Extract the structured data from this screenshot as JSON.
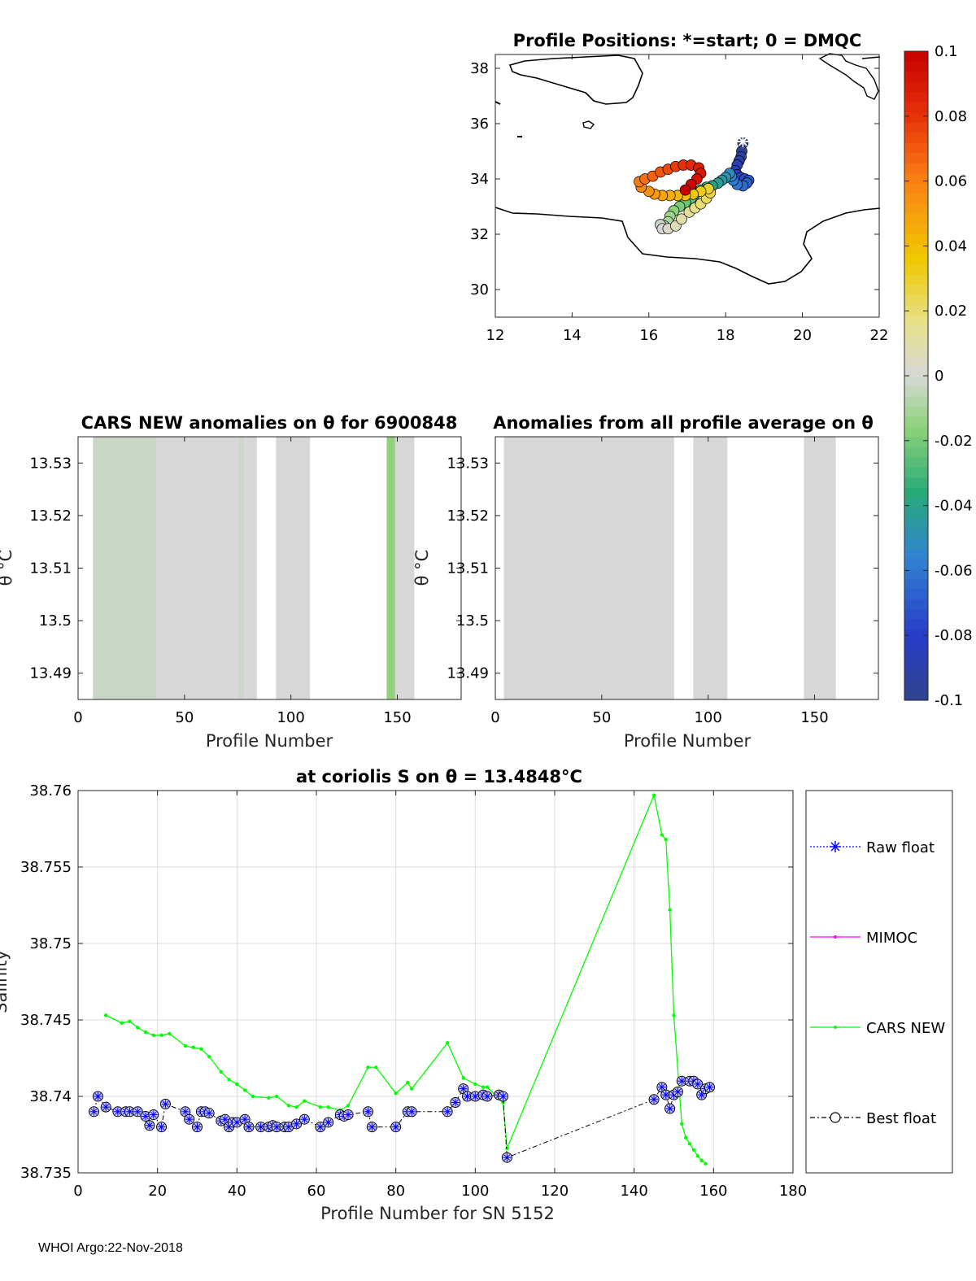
{
  "footer": "WHOI Argo:22-Nov-2018",
  "chart_data": [
    {
      "type": "scatter",
      "title": "Profile Positions: *=start; 0 = DMQC",
      "xlim": [
        12,
        22
      ],
      "ylim": [
        29,
        38.5
      ],
      "x_ticks": [
        "12",
        "14",
        "16",
        "18",
        "20",
        "22"
      ],
      "y_ticks": [
        "30",
        "32",
        "34",
        "36",
        "38"
      ],
      "start_marker": [
        18.45,
        35.35
      ],
      "track": [
        [
          18.45,
          35.3
        ],
        [
          18.42,
          35.0
        ],
        [
          18.4,
          34.8
        ],
        [
          18.35,
          34.65
        ],
        [
          18.3,
          34.5
        ],
        [
          18.25,
          34.3
        ],
        [
          18.3,
          34.15
        ],
        [
          18.4,
          34.05
        ],
        [
          18.5,
          34.0
        ],
        [
          18.6,
          33.95
        ],
        [
          18.55,
          33.85
        ],
        [
          18.45,
          33.75
        ],
        [
          18.3,
          33.8
        ],
        [
          18.2,
          33.95
        ],
        [
          18.15,
          34.1
        ],
        [
          18.1,
          34.2
        ],
        [
          18.0,
          34.05
        ],
        [
          17.9,
          33.95
        ],
        [
          17.8,
          33.85
        ],
        [
          17.65,
          33.75
        ],
        [
          17.5,
          33.7
        ],
        [
          17.35,
          33.6
        ],
        [
          17.2,
          33.45
        ],
        [
          17.1,
          33.3
        ],
        [
          16.95,
          33.15
        ],
        [
          16.8,
          33.0
        ],
        [
          16.65,
          32.85
        ],
        [
          16.55,
          32.65
        ],
        [
          16.5,
          32.45
        ],
        [
          16.4,
          32.3
        ],
        [
          16.3,
          32.35
        ],
        [
          16.35,
          32.2
        ],
        [
          16.5,
          32.2
        ],
        [
          16.7,
          32.3
        ],
        [
          16.85,
          32.55
        ],
        [
          17.05,
          32.8
        ],
        [
          17.2,
          32.95
        ],
        [
          17.35,
          33.1
        ],
        [
          17.5,
          33.3
        ],
        [
          17.6,
          33.5
        ],
        [
          17.55,
          33.65
        ],
        [
          17.35,
          33.55
        ],
        [
          17.15,
          33.45
        ],
        [
          16.95,
          33.4
        ],
        [
          16.75,
          33.4
        ],
        [
          16.55,
          33.4
        ],
        [
          16.35,
          33.4
        ],
        [
          16.15,
          33.45
        ],
        [
          16.0,
          33.55
        ],
        [
          15.8,
          33.7
        ],
        [
          15.75,
          33.9
        ],
        [
          15.9,
          34.0
        ],
        [
          16.1,
          34.1
        ],
        [
          16.3,
          34.25
        ],
        [
          16.5,
          34.35
        ],
        [
          16.7,
          34.45
        ],
        [
          16.9,
          34.5
        ],
        [
          17.1,
          34.5
        ],
        [
          17.3,
          34.4
        ],
        [
          17.35,
          34.2
        ],
        [
          17.25,
          34.0
        ],
        [
          17.1,
          33.8
        ],
        [
          16.95,
          33.6
        ]
      ],
      "colorbar": {
        "min": -0.1,
        "max": 0.1,
        "tick_labels": [
          "0.1",
          "0.08",
          "0.06",
          "0.04",
          "0.02",
          "0",
          "-0.02",
          "-0.04",
          "-0.06",
          "-0.08",
          "-0.1"
        ]
      }
    },
    {
      "type": "heatmap",
      "title": "CARS NEW anomalies on θ for 6900848",
      "xlabel": "Profile Number",
      "ylabel": "θ °C",
      "xlim": [
        0,
        180
      ],
      "ylim": [
        13.485,
        13.535
      ],
      "x_ticks": [
        "0",
        "50",
        "100",
        "150"
      ],
      "y_ticks": [
        "13.53",
        "13.52",
        "13.51",
        "13.5",
        "13.49"
      ],
      "columns": [
        {
          "from": 7,
          "to": 37,
          "value": -0.003
        },
        {
          "from": 37,
          "to": 75,
          "value": 0
        },
        {
          "from": 75,
          "to": 78,
          "value": -0.002
        },
        {
          "from": 78,
          "to": 84,
          "value": 0
        },
        {
          "from": 93,
          "to": 109,
          "value": 0
        },
        {
          "from": 145,
          "to": 149,
          "value": -0.015
        },
        {
          "from": 149,
          "to": 158,
          "value": 0
        }
      ]
    },
    {
      "type": "heatmap",
      "title": "Anomalies from all profile average on θ",
      "xlabel": "Profile Number",
      "ylabel": "θ °C",
      "xlim": [
        0,
        180
      ],
      "ylim": [
        13.485,
        13.535
      ],
      "x_ticks": [
        "0",
        "50",
        "100",
        "150"
      ],
      "y_ticks": [
        "13.53",
        "13.52",
        "13.51",
        "13.5",
        "13.49"
      ],
      "columns": [
        {
          "from": 4,
          "to": 84,
          "value": 0
        },
        {
          "from": 93,
          "to": 109,
          "value": 0
        },
        {
          "from": 145,
          "to": 160,
          "value": 0
        }
      ]
    },
    {
      "type": "line",
      "title": "at coriolis S on θ = 13.4848°C",
      "xlabel": "Profile Number for SN 5152",
      "ylabel": "Salinity",
      "xlim": [
        0,
        180
      ],
      "ylim": [
        38.735,
        38.76
      ],
      "x_ticks": [
        "0",
        "20",
        "40",
        "60",
        "80",
        "100",
        "120",
        "140",
        "160",
        "180"
      ],
      "y_ticks": [
        "38.76",
        "38.755",
        "38.75",
        "38.745",
        "38.74",
        "38.735"
      ],
      "grid": true,
      "legend": [
        "Raw float",
        "MIMOC",
        "CARS NEW",
        "Best float"
      ],
      "series": [
        {
          "name": "CARS NEW",
          "color": "#00ff00",
          "points": [
            [
              7,
              38.7453
            ],
            [
              11,
              38.7448
            ],
            [
              13,
              38.7449
            ],
            [
              15,
              38.7445
            ],
            [
              17,
              38.7442
            ],
            [
              19,
              38.744
            ],
            [
              21,
              38.744
            ],
            [
              23,
              38.7441
            ],
            [
              27,
              38.7433
            ],
            [
              29,
              38.7432
            ],
            [
              31,
              38.7431
            ],
            [
              33,
              38.7426
            ],
            [
              36,
              38.7416
            ],
            [
              38,
              38.7411
            ],
            [
              40,
              38.7408
            ],
            [
              42,
              38.7404
            ],
            [
              44,
              38.74
            ],
            [
              48,
              38.7399
            ],
            [
              50,
              38.74
            ],
            [
              53,
              38.7394
            ],
            [
              55,
              38.7393
            ],
            [
              57,
              38.7397
            ],
            [
              61,
              38.7393
            ],
            [
              63,
              38.7393
            ],
            [
              66,
              38.7391
            ],
            [
              68,
              38.7394
            ],
            [
              73,
              38.7419
            ],
            [
              75,
              38.7419
            ],
            [
              80,
              38.7402
            ],
            [
              83,
              38.7409
            ],
            [
              84,
              38.7405
            ],
            [
              93,
              38.7435
            ],
            [
              97,
              38.7412
            ],
            [
              100,
              38.7408
            ],
            [
              102,
              38.7406
            ],
            [
              103,
              38.7406
            ],
            [
              107,
              38.7396
            ],
            [
              108,
              38.7366
            ],
            [
              145,
              38.7597
            ],
            [
              147,
              38.7571
            ],
            [
              148,
              38.7568
            ],
            [
              149,
              38.7522
            ],
            [
              150,
              38.7453
            ],
            [
              152,
              38.7382
            ],
            [
              153,
              38.7373
            ],
            [
              154,
              38.7369
            ],
            [
              155,
              38.7365
            ],
            [
              156,
              38.7361
            ],
            [
              157,
              38.7358
            ],
            [
              158,
              38.7356
            ]
          ]
        },
        {
          "name": "Best float",
          "color": "#000000",
          "points": [
            [
              4,
              38.739
            ],
            [
              5,
              38.74
            ],
            [
              7,
              38.7393
            ],
            [
              10,
              38.739
            ],
            [
              12,
              38.739
            ],
            [
              13,
              38.739
            ],
            [
              15,
              38.739
            ],
            [
              17,
              38.7387
            ],
            [
              18,
              38.7381
            ],
            [
              19,
              38.7388
            ],
            [
              21,
              38.738
            ],
            [
              22,
              38.7395
            ],
            [
              27,
              38.739
            ],
            [
              28,
              38.7385
            ],
            [
              30,
              38.738
            ],
            [
              31,
              38.739
            ],
            [
              32,
              38.739
            ],
            [
              33,
              38.7389
            ],
            [
              36,
              38.7384
            ],
            [
              37,
              38.7385
            ],
            [
              38,
              38.738
            ],
            [
              39,
              38.7383
            ],
            [
              40,
              38.7383
            ],
            [
              42,
              38.7385
            ],
            [
              43,
              38.738
            ],
            [
              46,
              38.738
            ],
            [
              48,
              38.738
            ],
            [
              49,
              38.7381
            ],
            [
              50,
              38.738
            ],
            [
              52,
              38.738
            ],
            [
              53,
              38.738
            ],
            [
              55,
              38.7382
            ],
            [
              57,
              38.7385
            ],
            [
              61,
              38.738
            ],
            [
              63,
              38.7383
            ],
            [
              66,
              38.7388
            ],
            [
              67,
              38.7387
            ],
            [
              68,
              38.7388
            ],
            [
              73,
              38.739
            ],
            [
              74,
              38.738
            ],
            [
              80,
              38.738
            ],
            [
              83,
              38.739
            ],
            [
              84,
              38.739
            ],
            [
              93,
              38.739
            ],
            [
              95,
              38.7396
            ],
            [
              97,
              38.7405
            ],
            [
              98,
              38.74
            ],
            [
              100,
              38.74
            ],
            [
              102,
              38.7401
            ],
            [
              103,
              38.74
            ],
            [
              106,
              38.7401
            ],
            [
              107,
              38.74
            ],
            [
              108,
              38.736
            ],
            [
              145,
              38.7398
            ],
            [
              147,
              38.7406
            ],
            [
              148,
              38.7401
            ],
            [
              149,
              38.7392
            ],
            [
              150,
              38.7401
            ],
            [
              151,
              38.7403
            ],
            [
              152,
              38.741
            ],
            [
              154,
              38.741
            ],
            [
              155,
              38.741
            ],
            [
              156,
              38.7408
            ],
            [
              157,
              38.7401
            ],
            [
              158,
              38.7405
            ],
            [
              159,
              38.7406
            ]
          ]
        }
      ]
    }
  ]
}
